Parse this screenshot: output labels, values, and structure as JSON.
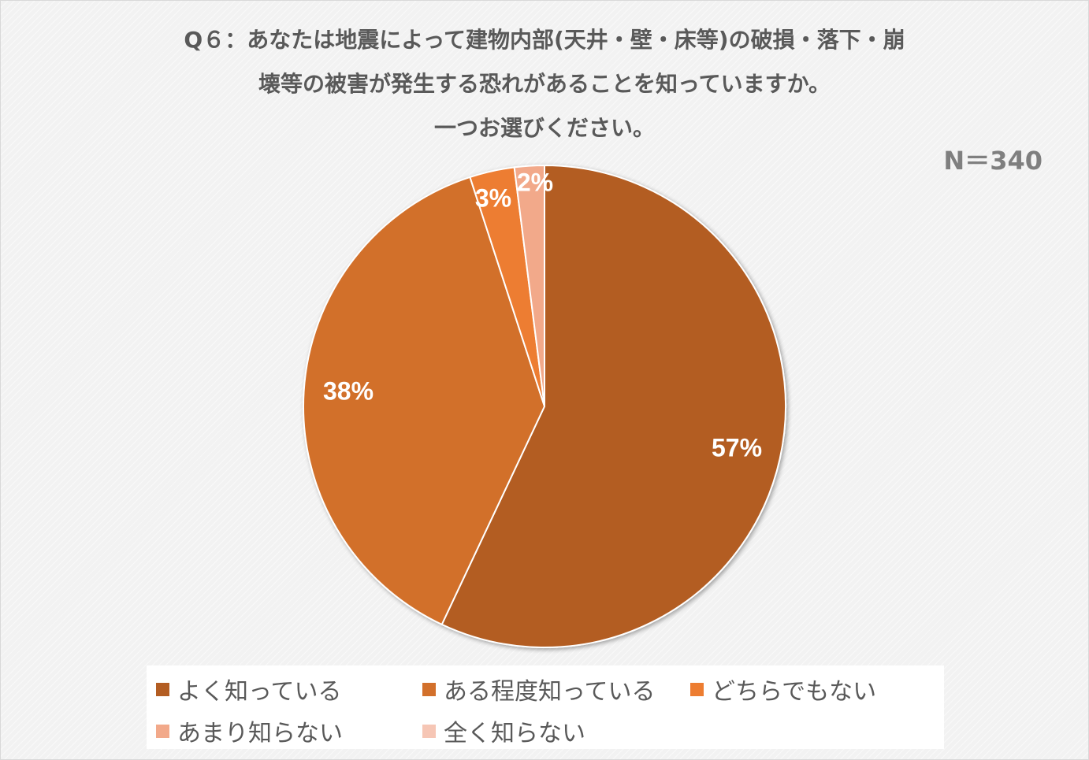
{
  "title_lines": [
    "Q６：あなたは地震によって建物内部(天井・壁・床等)の破損・落下・崩",
    "壊等の被害が発生する恐れがあることを知っていますか。",
    "一つお選びください。"
  ],
  "sample_size_label": "N＝340",
  "chart_data": {
    "type": "pie",
    "title": "Q６：あなたは地震によって建物内部(天井・壁・床等)の破損・落下・崩壊等の被害が発生する恐れがあることを知っていますか。一つお選びください。",
    "start_angle": "12 o'clock, clockwise",
    "slices": [
      {
        "label": "よく知っている",
        "value": 57,
        "display": "57%",
        "color": "#b35d22"
      },
      {
        "label": "ある程度知っている",
        "value": 38,
        "display": "38%",
        "color": "#d2702b"
      },
      {
        "label": "どちらでもない",
        "value": 3,
        "display": "3%",
        "color": "#ed7d31"
      },
      {
        "label": "あまり知らない",
        "value": 2,
        "display": "2%",
        "color": "#f2a98a"
      },
      {
        "label": "全く知らない",
        "value": 0,
        "display": "",
        "color": "#f6c6b5"
      }
    ],
    "legend_position": "bottom"
  }
}
